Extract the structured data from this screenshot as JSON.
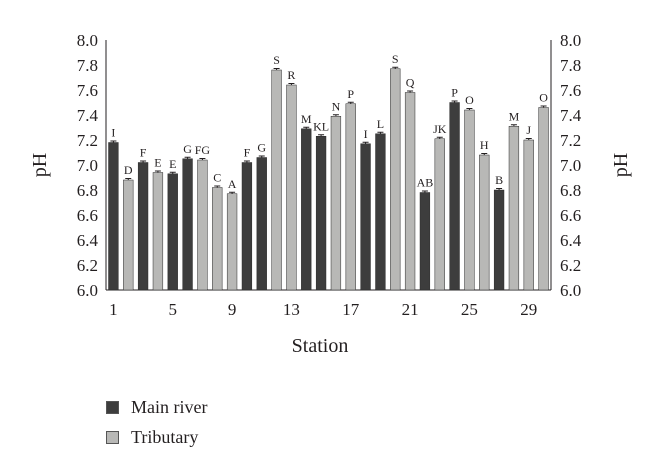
{
  "chart_data": {
    "type": "bar",
    "xlabel": "Station",
    "ylabel_left": "pH",
    "ylabel_right": "pH",
    "ylim": [
      6.0,
      8.0
    ],
    "yticks": [
      "6.0",
      "6.2",
      "6.4",
      "6.6",
      "6.8",
      "7.0",
      "7.2",
      "7.4",
      "7.6",
      "7.8",
      "8.0"
    ],
    "xticks": [
      {
        "station": 1,
        "label": "1"
      },
      {
        "station": 5,
        "label": "5"
      },
      {
        "station": 9,
        "label": "9"
      },
      {
        "station": 13,
        "label": "13"
      },
      {
        "station": 17,
        "label": "17"
      },
      {
        "station": 21,
        "label": "21"
      },
      {
        "station": 25,
        "label": "25"
      },
      {
        "station": 29,
        "label": "29"
      }
    ],
    "legend_position": "bottom-left",
    "series": [
      {
        "name": "Main river",
        "color": "#3d3d3d"
      },
      {
        "name": "Tributary",
        "color": "#b8b8b6"
      }
    ],
    "bars": [
      {
        "station": 1,
        "series": "Main river",
        "value": 7.18,
        "label": "I"
      },
      {
        "station": 2,
        "series": "Tributary",
        "value": 6.88,
        "label": "D"
      },
      {
        "station": 3,
        "series": "Main river",
        "value": 7.02,
        "label": "F"
      },
      {
        "station": 4,
        "series": "Tributary",
        "value": 6.94,
        "label": "E"
      },
      {
        "station": 5,
        "series": "Main river",
        "value": 6.93,
        "label": "E"
      },
      {
        "station": 6,
        "series": "Main river",
        "value": 7.05,
        "label": "G"
      },
      {
        "station": 7,
        "series": "Tributary",
        "value": 7.04,
        "label": "FG"
      },
      {
        "station": 8,
        "series": "Tributary",
        "value": 6.82,
        "label": "C"
      },
      {
        "station": 9,
        "series": "Tributary",
        "value": 6.77,
        "label": "A"
      },
      {
        "station": 10,
        "series": "Main river",
        "value": 7.02,
        "label": "F"
      },
      {
        "station": 11,
        "series": "Main river",
        "value": 7.06,
        "label": "G"
      },
      {
        "station": 12,
        "series": "Tributary",
        "value": 7.76,
        "label": "S"
      },
      {
        "station": 13,
        "series": "Tributary",
        "value": 7.64,
        "label": "R"
      },
      {
        "station": 14,
        "series": "Main river",
        "value": 7.29,
        "label": "M"
      },
      {
        "station": 15,
        "series": "Main river",
        "value": 7.23,
        "label": "KL"
      },
      {
        "station": 16,
        "series": "Tributary",
        "value": 7.39,
        "label": "N"
      },
      {
        "station": 17,
        "series": "Tributary",
        "value": 7.49,
        "label": "P"
      },
      {
        "station": 18,
        "series": "Main river",
        "value": 7.17,
        "label": "I"
      },
      {
        "station": 19,
        "series": "Main river",
        "value": 7.25,
        "label": "L"
      },
      {
        "station": 20,
        "series": "Tributary",
        "value": 7.77,
        "label": "S"
      },
      {
        "station": 21,
        "series": "Tributary",
        "value": 7.58,
        "label": "Q"
      },
      {
        "station": 22,
        "series": "Main river",
        "value": 6.78,
        "label": "AB"
      },
      {
        "station": 23,
        "series": "Tributary",
        "value": 7.21,
        "label": "JK"
      },
      {
        "station": 24,
        "series": "Main river",
        "value": 7.5,
        "label": "P"
      },
      {
        "station": 25,
        "series": "Tributary",
        "value": 7.44,
        "label": "O"
      },
      {
        "station": 26,
        "series": "Tributary",
        "value": 7.08,
        "label": "H"
      },
      {
        "station": 27,
        "series": "Main river",
        "value": 6.8,
        "label": "B"
      },
      {
        "station": 28,
        "series": "Tributary",
        "value": 7.31,
        "label": "M"
      },
      {
        "station": 29,
        "series": "Tributary",
        "value": 7.2,
        "label": "J"
      },
      {
        "station": 30,
        "series": "Tributary",
        "value": 7.46,
        "label": "O"
      }
    ]
  }
}
